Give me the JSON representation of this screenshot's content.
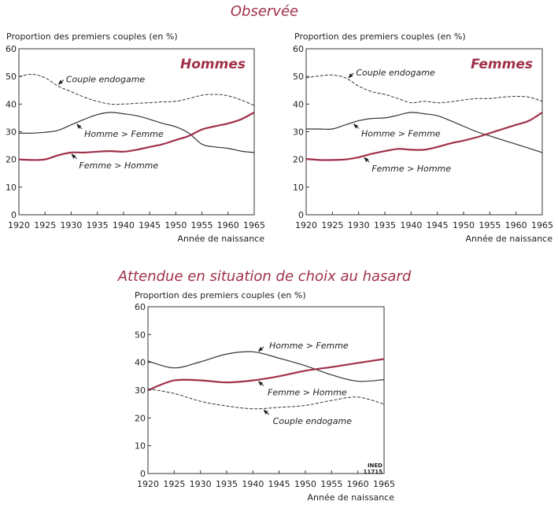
{
  "sections": {
    "observed_title": "Observée",
    "expected_title": "Attendue en situation de choix au hasard"
  },
  "watermark": {
    "line1": "INED",
    "line2": "11715"
  },
  "colors": {
    "title": "#a0304a",
    "femme_homme": "#a0304a",
    "homme_femme": "#333333",
    "endogame": "#333333"
  },
  "chart_data": [
    {
      "type": "line",
      "panel_label": "Hommes",
      "ylabel": "Proportion des premiers couples (en %)",
      "xlabel": "Année de naissance",
      "xlim": [
        1920,
        1965
      ],
      "ylim": [
        0,
        60
      ],
      "xticks": [
        1920,
        1925,
        1930,
        1935,
        1940,
        1945,
        1950,
        1955,
        1960,
        1965
      ],
      "yticks": [
        0,
        10,
        20,
        30,
        40,
        50,
        60
      ],
      "x": [
        1920,
        1922.5,
        1925,
        1927.5,
        1930,
        1932.5,
        1935,
        1937.5,
        1940,
        1942.5,
        1945,
        1947.5,
        1950,
        1952.5,
        1955,
        1957.5,
        1960,
        1962.5,
        1965
      ],
      "series": [
        {
          "name": "Couple endogame",
          "style": "dashed",
          "annotation_x": 1927.5,
          "values": [
            50,
            50.8,
            49.5,
            46.5,
            44.5,
            42.5,
            41,
            40,
            40,
            40.3,
            40.5,
            40.8,
            41,
            42,
            43.2,
            43.5,
            43,
            41.5,
            39.5
          ]
        },
        {
          "name": "Homme > Femme",
          "style": "solid",
          "annotation_x": 1931,
          "values": [
            29.5,
            29.5,
            29.8,
            30.5,
            32.5,
            34.5,
            36.2,
            37,
            36.5,
            35.8,
            34.5,
            33,
            31.8,
            29.5,
            25.5,
            24.5,
            24,
            23,
            22.5
          ]
        },
        {
          "name": "Femme > Homme",
          "style": "thick",
          "annotation_x": 1930,
          "values": [
            20,
            19.8,
            20,
            21.5,
            22.5,
            22.5,
            22.8,
            23,
            22.8,
            23.5,
            24.5,
            25.5,
            27,
            28.5,
            30.8,
            32,
            33,
            34.5,
            37
          ]
        }
      ]
    },
    {
      "type": "line",
      "panel_label": "Femmes",
      "ylabel": "Proportion des premiers couples (en %)",
      "xlabel": "Année de naissance",
      "xlim": [
        1920,
        1965
      ],
      "ylim": [
        0,
        60
      ],
      "xticks": [
        1920,
        1925,
        1930,
        1935,
        1940,
        1945,
        1950,
        1955,
        1960,
        1965
      ],
      "yticks": [
        0,
        10,
        20,
        30,
        40,
        50,
        60
      ],
      "x": [
        1920,
        1922.5,
        1925,
        1927.5,
        1930,
        1932.5,
        1935,
        1937.5,
        1940,
        1942.5,
        1945,
        1947.5,
        1950,
        1952.5,
        1955,
        1957.5,
        1960,
        1962.5,
        1965
      ],
      "series": [
        {
          "name": "Couple endogame",
          "style": "dashed",
          "annotation_x": 1928,
          "values": [
            49.5,
            50.2,
            50.5,
            49.5,
            46.5,
            44.5,
            43.5,
            42,
            40.5,
            41,
            40.5,
            40.8,
            41.5,
            42,
            42,
            42.5,
            42.8,
            42.5,
            41
          ]
        },
        {
          "name": "Homme > Femme",
          "style": "solid",
          "annotation_x": 1929,
          "values": [
            31,
            31,
            31,
            32.5,
            34,
            34.8,
            35,
            36,
            37,
            36.5,
            35.8,
            34,
            32,
            30,
            28.5,
            27,
            25.5,
            24,
            22.5
          ]
        },
        {
          "name": "Femme > Homme",
          "style": "thick",
          "annotation_x": 1931,
          "values": [
            20.2,
            19.8,
            19.8,
            20,
            20.8,
            22,
            23,
            23.8,
            23.5,
            23.5,
            24.5,
            25.8,
            26.8,
            28,
            29.5,
            31,
            32.5,
            34,
            37
          ]
        }
      ]
    },
    {
      "type": "line",
      "panel_label": "",
      "ylabel": "Proportion des premiers couples (en %)",
      "xlabel": "Année de naissance",
      "xlim": [
        1920,
        1965
      ],
      "ylim": [
        0,
        60
      ],
      "xticks": [
        1920,
        1925,
        1930,
        1935,
        1940,
        1945,
        1950,
        1955,
        1960,
        1965
      ],
      "yticks": [
        0,
        10,
        20,
        30,
        40,
        50,
        60
      ],
      "x": [
        1920,
        1925,
        1930,
        1935,
        1940,
        1945,
        1950,
        1955,
        1960,
        1965
      ],
      "series": [
        {
          "name": "Homme > Femme",
          "style": "solid",
          "annotation_x": 1941,
          "values": [
            40.5,
            38,
            40.2,
            43,
            43.8,
            41.5,
            38.8,
            35.5,
            33.2,
            33.8
          ]
        },
        {
          "name": "Femme > Homme",
          "style": "thick",
          "annotation_x": 1941,
          "values": [
            30,
            33.5,
            33.5,
            32.8,
            33.5,
            35,
            37,
            38.3,
            39.8,
            41.2
          ]
        },
        {
          "name": "Couple endogame",
          "style": "dashed",
          "annotation_x": 1942,
          "values": [
            30.5,
            28.8,
            26,
            24.3,
            23.3,
            23.8,
            24.5,
            26.3,
            27.5,
            25
          ]
        }
      ]
    }
  ]
}
